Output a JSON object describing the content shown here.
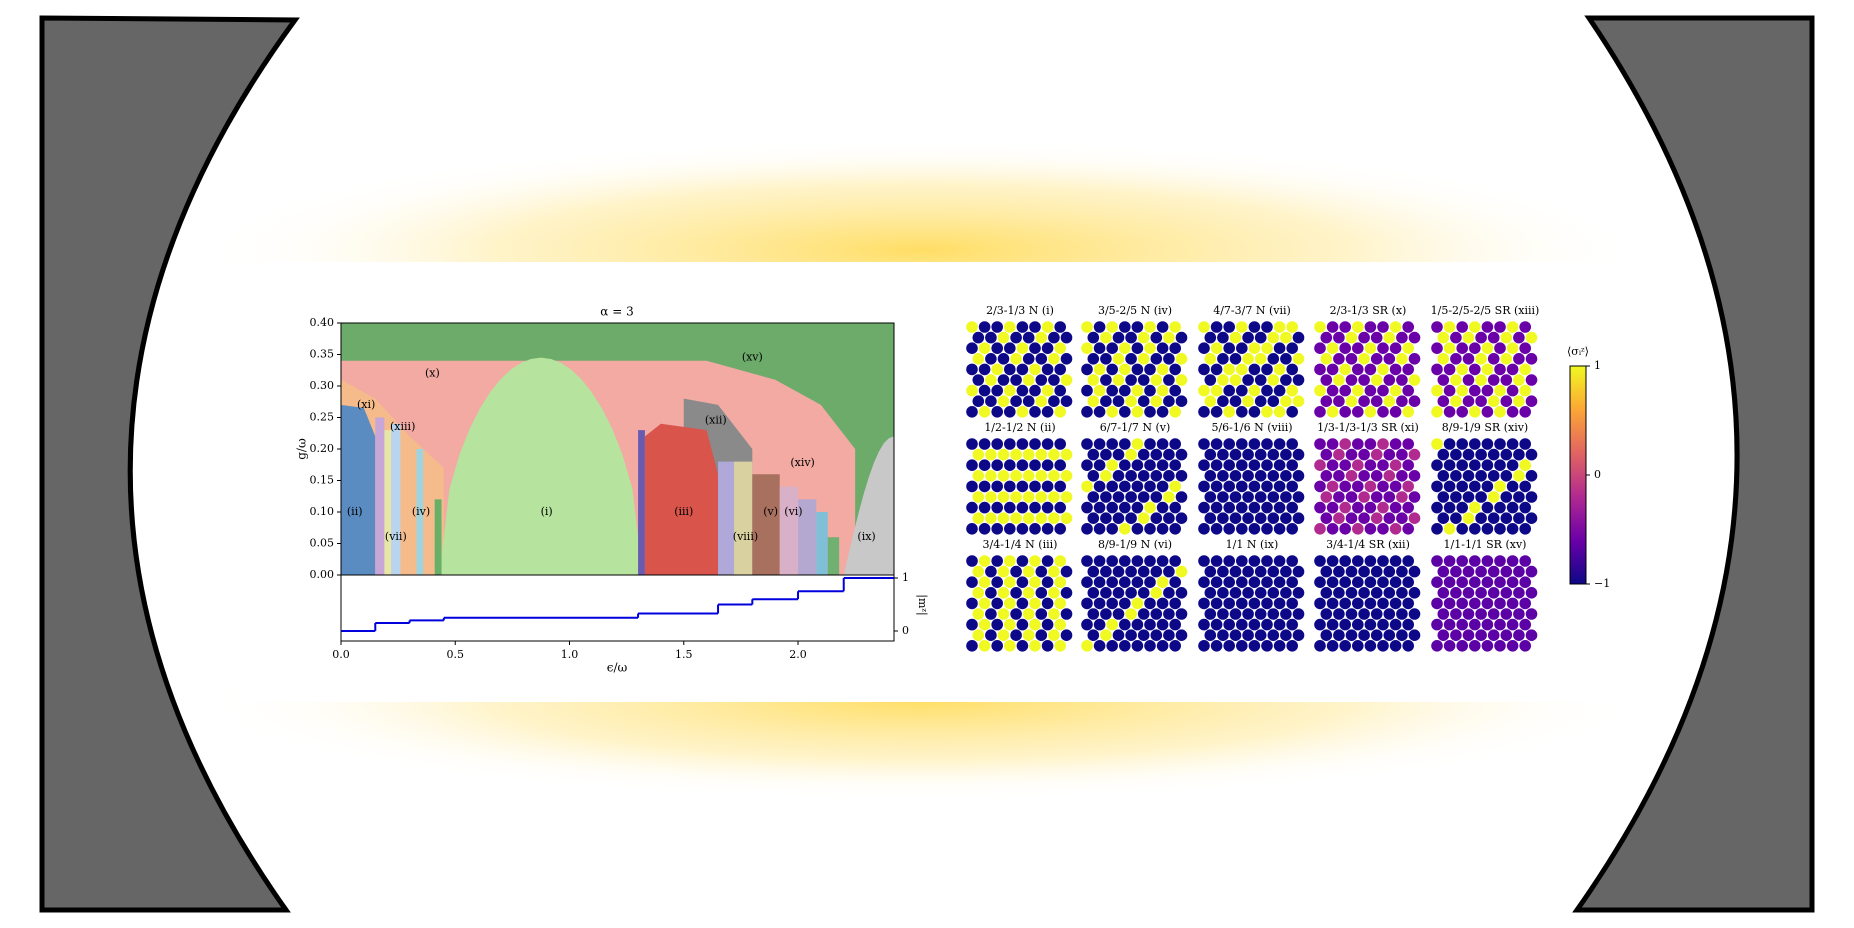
{
  "phase_diagram": {
    "title": "α = 3",
    "xlabel": "ϵ/ω",
    "ylabel": "g/ω",
    "y2label": "|mᶻ|",
    "xlim": [
      0,
      2.42
    ],
    "xticks": [
      {
        "value": 0,
        "label": "0.0"
      },
      {
        "value": 0.5,
        "label": "0.5"
      },
      {
        "value": 1,
        "label": "1.0"
      },
      {
        "value": 1.5,
        "label": "1.5"
      },
      {
        "value": 2,
        "label": "2.0"
      }
    ],
    "ylim": [
      0,
      0.4
    ],
    "yticks": [
      {
        "value": 0,
        "label": "0.00"
      },
      0.05,
      {
        "value": 0.1,
        "label": "0.10"
      },
      0.15,
      {
        "value": 0.2,
        "label": "0.20"
      },
      0.25,
      {
        "value": 0.3,
        "label": "0.30"
      },
      0.35,
      {
        "value": 0.4,
        "label": "0.40"
      }
    ],
    "y2lim": [
      0,
      1
    ],
    "y2ticks": [
      0,
      1
    ],
    "regions": [
      "(ii)",
      "(vii)",
      "(iv)",
      "(i)",
      "(iii)",
      "(viii)",
      "(v)",
      "(vi)",
      "(ix)",
      "(xi)",
      "(xiii)",
      "(x)",
      "(xii)",
      "(xiv)",
      "(xv)"
    ],
    "magnetization": {
      "color": "#0000dd",
      "x": [
        0,
        0.15,
        0.3,
        0.45,
        1.3,
        1.65,
        1.8,
        2.0,
        2.2
      ],
      "values": [
        0.0,
        0.15,
        0.2,
        0.25,
        0.33,
        0.5,
        0.6,
        0.75,
        1.0
      ]
    }
  },
  "configurations": [
    "2/3-1/3 N (i)",
    "3/5-2/5 N (iv)",
    "4/7-3/7 N (vii)",
    "2/3-1/3 SR (x)",
    "1/5-2/5-2/5 SR (xiii)",
    "1/2-1/2 N (ii)",
    "6/7-1/7 N (v)",
    "5/6-1/6 N (viii)",
    "1/3-1/3-1/3 SR (xi)",
    "8/9-1/9 SR (xiv)",
    "3/4-1/4 N (iii)",
    "8/9-1/9 N (vi)",
    "1/1 N (ix)",
    "3/4-1/4 SR (xii)",
    "1/1-1/1 SR (xv)"
  ],
  "colorbar": {
    "label": "⟨σᵢᶻ⟩",
    "lim": [
      -1,
      1
    ],
    "ticks": [
      {
        "value": -1,
        "label": "−1"
      },
      0,
      1
    ]
  }
}
